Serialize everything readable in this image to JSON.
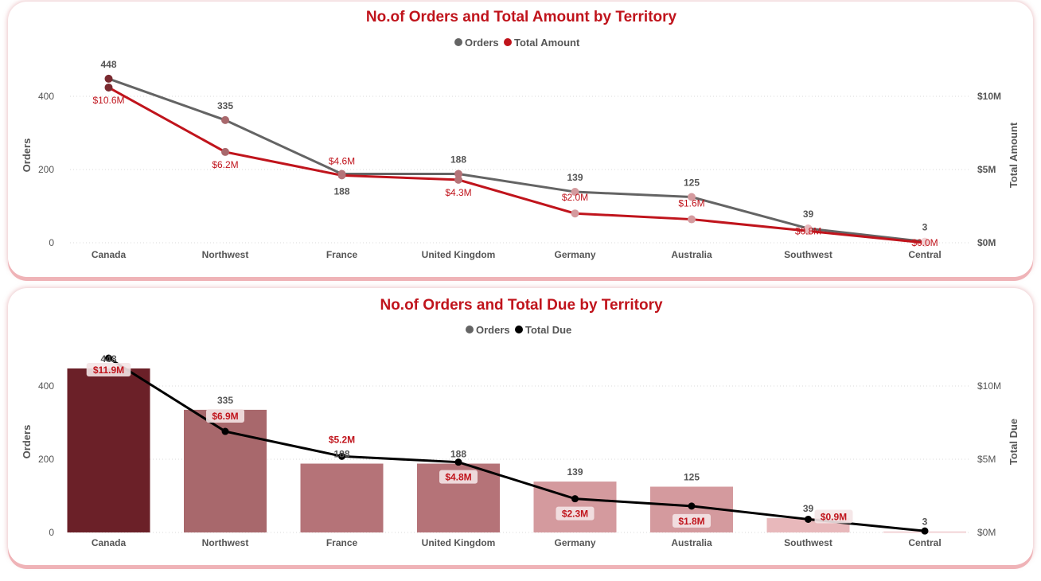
{
  "colors": {
    "orders": "#646464",
    "total_amount": "#c0141c",
    "total_due": "#000000",
    "bar_gradient": [
      "#6b2028",
      "#a8686c",
      "#b57378",
      "#d49a9e",
      "#e8b8bb",
      "#f2d4d6"
    ]
  },
  "chart_data": [
    {
      "type": "line",
      "title": "No.of Orders and Total Amount by Territory",
      "categories": [
        "Canada",
        "Northwest",
        "France",
        "United Kingdom",
        "Germany",
        "Australia",
        "Southwest",
        "Central"
      ],
      "series": [
        {
          "name": "Orders",
          "axis": "left",
          "values": [
            448,
            335,
            188,
            188,
            139,
            125,
            39,
            3
          ],
          "labels": [
            "448",
            "335",
            "188",
            "188",
            "139",
            "125",
            "39",
            "3"
          ]
        },
        {
          "name": "Total Amount",
          "axis": "right",
          "values": [
            10.6,
            6.2,
            4.6,
            4.3,
            2.0,
            1.6,
            0.8,
            0.0
          ],
          "labels": [
            "$10.6M",
            "$6.2M",
            "$4.6M",
            "$4.3M",
            "$2.0M",
            "$1.6M",
            "$0.8M",
            "$0.0M"
          ]
        }
      ],
      "ylabel": "Orders",
      "y2label": "Total Amount",
      "yticks": [
        0,
        200,
        400
      ],
      "yticks_labels": [
        "0",
        "200",
        "400"
      ],
      "ylim": [
        0,
        500
      ],
      "y2ticks": [
        0,
        5,
        10
      ],
      "y2ticks_labels": [
        "$0M",
        "$5M",
        "$10M"
      ],
      "y2lim": [
        0,
        12.5
      ],
      "legend": "top-center"
    },
    {
      "type": "bar",
      "title": "No.of Orders and Total Due by Territory",
      "categories": [
        "Canada",
        "Northwest",
        "France",
        "United Kingdom",
        "Germany",
        "Australia",
        "Southwest",
        "Central"
      ],
      "series": [
        {
          "name": "Orders",
          "kind": "bar",
          "axis": "left",
          "values": [
            448,
            335,
            188,
            188,
            139,
            125,
            39,
            3
          ],
          "labels": [
            "448",
            "335",
            "188",
            "188",
            "139",
            "125",
            "39",
            "3"
          ]
        },
        {
          "name": "Total Due",
          "kind": "line",
          "axis": "right",
          "values": [
            11.9,
            6.9,
            5.2,
            4.8,
            2.3,
            1.8,
            0.9,
            0.1
          ],
          "labels": [
            "$11.9M",
            "$6.9M",
            "$5.2M",
            "$4.8M",
            "$2.3M",
            "$1.8M",
            "$0.9M",
            ""
          ]
        }
      ],
      "ylabel": "Orders",
      "y2label": "Total Due",
      "yticks": [
        0,
        200,
        400
      ],
      "yticks_labels": [
        "0",
        "200",
        "400"
      ],
      "ylim": [
        0,
        500
      ],
      "y2ticks": [
        0,
        5,
        10
      ],
      "y2ticks_labels": [
        "$0M",
        "$5M",
        "$10M"
      ],
      "y2lim": [
        0,
        12.5
      ],
      "legend": "top-center"
    }
  ]
}
